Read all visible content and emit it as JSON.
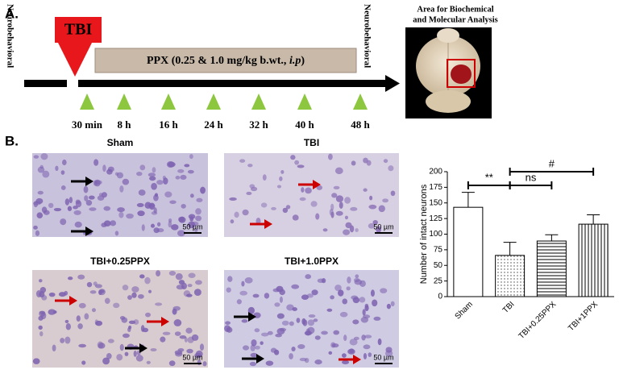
{
  "panel_a": {
    "label": "A.",
    "left_label": "Neurobehavioral",
    "right_label": "Neurobehavioral",
    "tbi": "TBI",
    "treatment": [
      "PPX (0.25 & 1.0 mg/kg b.wt.,",
      "i.p",
      ")"
    ],
    "timepoints": [
      "30 min",
      "8 h",
      "16 h",
      "24 h",
      "32 h",
      "40 h",
      "48 h"
    ],
    "brain_caption": [
      "Area for Biochemical",
      "and Molecular Analysis"
    ]
  },
  "panel_b": {
    "label": "B.",
    "images": [
      {
        "title": "Sham",
        "scale": "50 µm"
      },
      {
        "title": "TBI",
        "scale": "50 µm"
      },
      {
        "title": "TBI+0.25PPX",
        "scale": "50 µm"
      },
      {
        "title": "TBI+1.0PPX",
        "scale": "50 µm"
      }
    ]
  },
  "chart_data": {
    "type": "bar",
    "ylabel": "Number of intact neurons",
    "categories": [
      "Sham",
      "TBI",
      "TBI+0.25PPX",
      "TBI+1PPX"
    ],
    "values": [
      143,
      66,
      89,
      116
    ],
    "errors": [
      24,
      21,
      10,
      15
    ],
    "ylim": [
      0,
      200
    ],
    "yticks": [
      0,
      25,
      50,
      75,
      100,
      125,
      150,
      175,
      200
    ],
    "annotations": [
      "**",
      "ns",
      "#"
    ]
  }
}
